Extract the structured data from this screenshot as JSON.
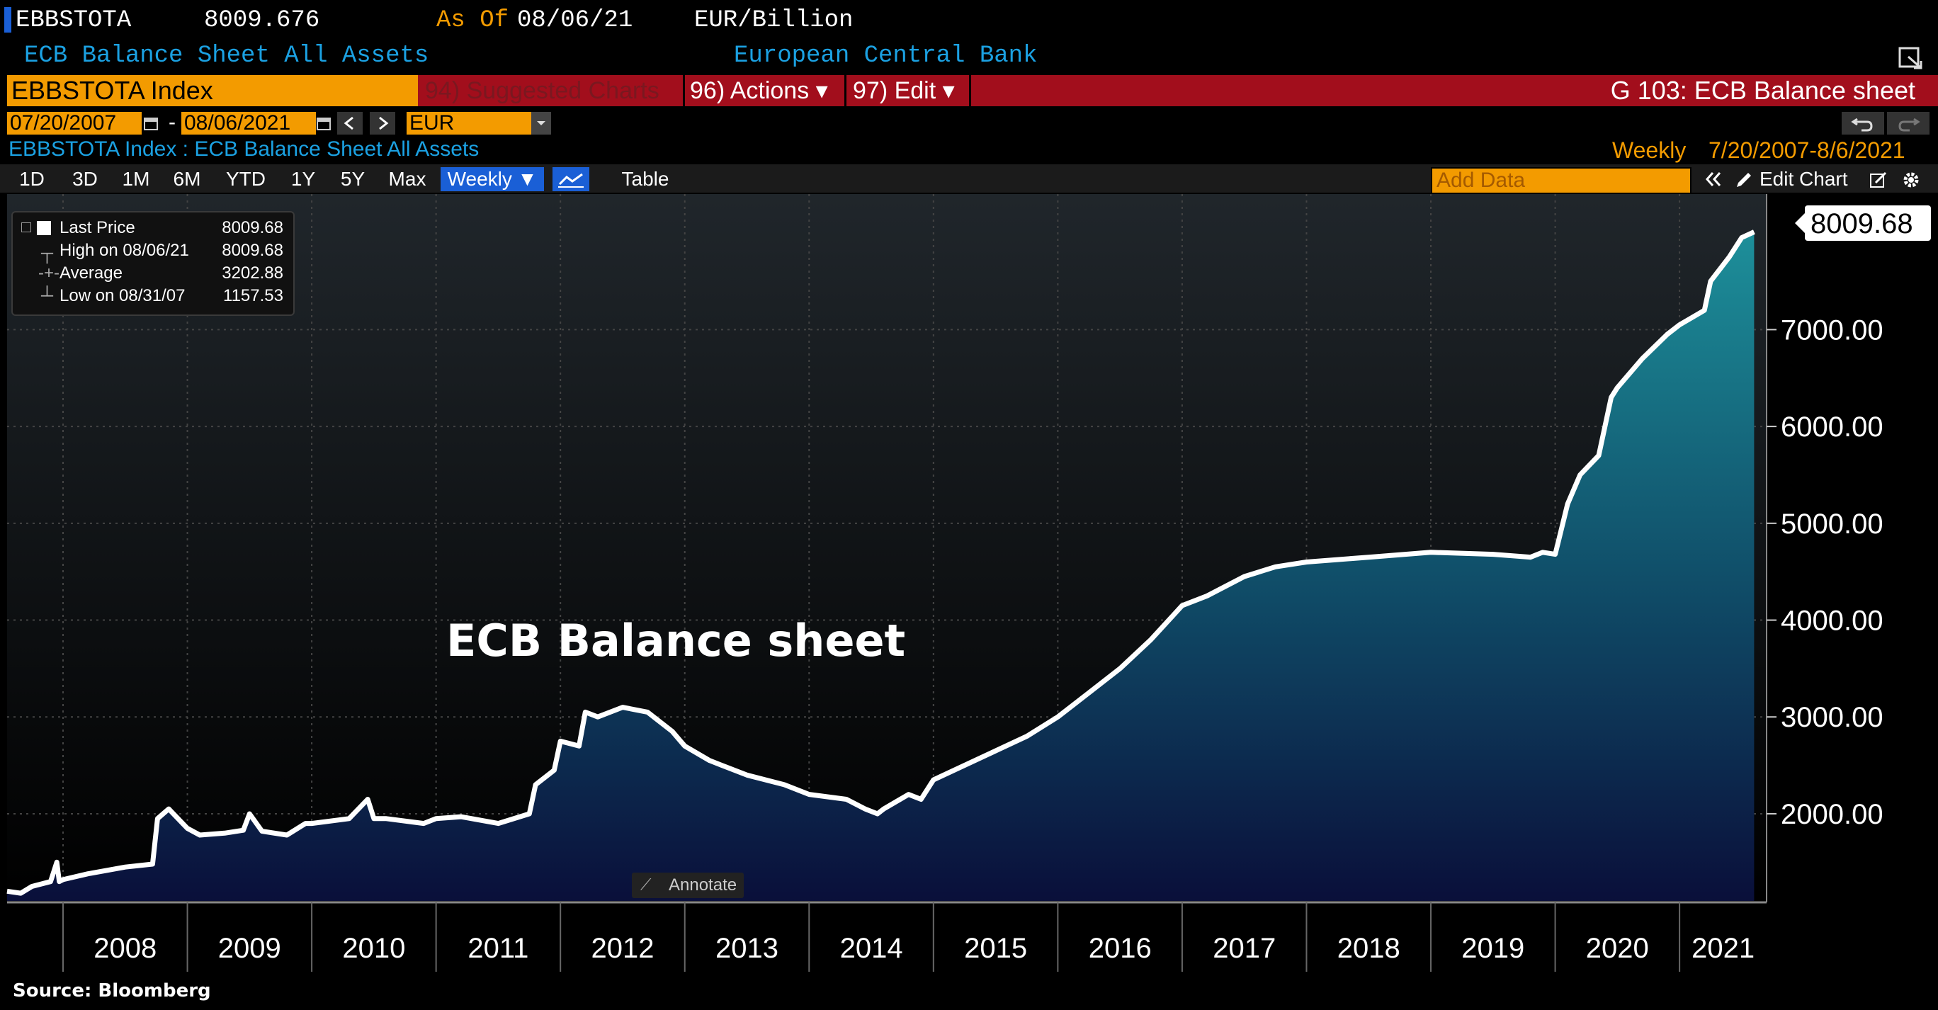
{
  "header": {
    "ticker": "EBBSTOTA",
    "price": "8009.676",
    "as_of_label": "As Of",
    "as_of_date": "08/06/21",
    "units": "EUR/Billion",
    "description": "ECB Balance Sheet All Assets",
    "source_org": "European Central Bank"
  },
  "command_bar": {
    "security": "EBBSTOTA Index",
    "suggested": "94) Suggested Charts",
    "actions": "96) Actions ▾",
    "edit": "97) Edit ▾",
    "chart_title": "G 103: ECB Balance sheet"
  },
  "date_bar": {
    "start": "07/20/2007",
    "separator": "-",
    "end": "08/06/2021",
    "currency": "EUR"
  },
  "series_bar": {
    "series_desc": "EBBSTOTA Index : ECB Balance Sheet All Assets",
    "frequency": "Weekly",
    "range": "7/20/2007-8/6/2021"
  },
  "toolbar": {
    "periods": [
      "1D",
      "3D",
      "1M",
      "6M",
      "YTD",
      "1Y",
      "5Y",
      "Max"
    ],
    "frequency_select": "Weekly ▼",
    "table_label": "Table",
    "add_data_placeholder": "Add Data",
    "edit_chart": "Edit Chart"
  },
  "legend": {
    "last_price_label": "Last Price",
    "last_price_value": "8009.68",
    "high_label": "High on 08/06/21",
    "high_value": "8009.68",
    "average_label": "Average",
    "average_value": "3202.88",
    "low_label": "Low on 08/31/07",
    "low_value": "1157.53"
  },
  "annotate_label": "Annotate",
  "footer": {
    "source": "Source: Bloomberg"
  },
  "colors": {
    "line": "#ffffff",
    "fill_top": "#1d8f9a",
    "fill_bottom": "#0a0f3a",
    "accent_orange": "#f39b00",
    "header_blue": "#1ba1e2",
    "red_bar": "#a20e1c"
  },
  "chart_data": {
    "type": "area",
    "title": "ECB Balance sheet",
    "xlabel": "",
    "ylabel": "",
    "last_value_label": "8009.68",
    "ylim": [
      1100,
      8400
    ],
    "yticks": [
      "2000.00",
      "3000.00",
      "4000.00",
      "5000.00",
      "6000.00",
      "7000.00"
    ],
    "ytick_values": [
      2000,
      3000,
      4000,
      5000,
      6000,
      7000
    ],
    "xlim": [
      2007.55,
      2021.7
    ],
    "xtick_labels": [
      "2008",
      "2009",
      "2010",
      "2011",
      "2012",
      "2013",
      "2014",
      "2015",
      "2016",
      "2017",
      "2018",
      "2019",
      "2020",
      "2021"
    ],
    "year_boundaries": [
      2008,
      2009,
      2010,
      2011,
      2012,
      2013,
      2014,
      2015,
      2016,
      2017,
      2018,
      2019,
      2020,
      2021
    ],
    "series": [
      {
        "x": [
          2007.55,
          2007.66,
          2007.75,
          2007.9,
          2007.95,
          2007.97,
          2008.0,
          2008.2,
          2008.5,
          2008.72,
          2008.76,
          2008.85,
          2009.0,
          2009.1,
          2009.3,
          2009.45,
          2009.5,
          2009.6,
          2009.8,
          2009.95,
          2010.0,
          2010.3,
          2010.45,
          2010.5,
          2010.6,
          2010.9,
          2011.0,
          2011.2,
          2011.5,
          2011.75,
          2011.8,
          2011.95,
          2012.0,
          2012.15,
          2012.2,
          2012.3,
          2012.5,
          2012.7,
          2012.9,
          2013.0,
          2013.2,
          2013.5,
          2013.8,
          2014.0,
          2014.3,
          2014.45,
          2014.55,
          2014.6,
          2014.8,
          2014.9,
          2015.0,
          2015.25,
          2015.5,
          2015.75,
          2016.0,
          2016.25,
          2016.5,
          2016.75,
          2017.0,
          2017.2,
          2017.5,
          2017.75,
          2018.0,
          2018.5,
          2019.0,
          2019.5,
          2019.8,
          2019.9,
          2020.0,
          2020.1,
          2020.2,
          2020.35,
          2020.45,
          2020.5,
          2020.7,
          2020.9,
          2021.0,
          2021.2,
          2021.25,
          2021.4,
          2021.5,
          2021.6
        ],
        "y": [
          1200,
          1180,
          1250,
          1300,
          1500,
          1300,
          1320,
          1380,
          1450,
          1480,
          1950,
          2050,
          1850,
          1780,
          1800,
          1830,
          2000,
          1820,
          1780,
          1900,
          1900,
          1950,
          2150,
          1950,
          1950,
          1900,
          1950,
          1970,
          1900,
          2000,
          2300,
          2450,
          2750,
          2700,
          3050,
          3000,
          3100,
          3050,
          2850,
          2700,
          2550,
          2400,
          2300,
          2200,
          2150,
          2050,
          2000,
          2050,
          2200,
          2150,
          2350,
          2500,
          2650,
          2800,
          3000,
          3250,
          3500,
          3800,
          4150,
          4250,
          4450,
          4550,
          4600,
          4650,
          4700,
          4680,
          4650,
          4700,
          4680,
          5200,
          5500,
          5700,
          6300,
          6400,
          6700,
          6950,
          7050,
          7200,
          7500,
          7750,
          7950,
          8009.68
        ]
      }
    ]
  }
}
